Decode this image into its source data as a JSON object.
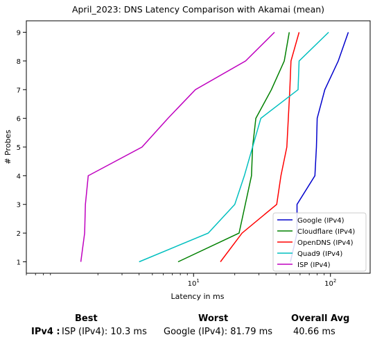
{
  "chart_data": {
    "type": "line",
    "title": "April_2023: DNS Latency Comparison with Akamai (mean)",
    "xlabel": "Latency in ms",
    "ylabel": "# Probes",
    "x_scale": "log",
    "xlim": [
      0.6,
      195
    ],
    "ylim": [
      0.6,
      9.4
    ],
    "x_ticks": [
      10,
      100
    ],
    "x_tick_labels": [
      "10^1",
      "10^2"
    ],
    "y_ticks": [
      1,
      2,
      3,
      4,
      5,
      6,
      7,
      8,
      9
    ],
    "grid": false,
    "legend_position": "lower-right",
    "series": [
      {
        "name": "Google (IPv4)",
        "color": "#0000cc",
        "points": [
          [
            51,
            1
          ],
          [
            57,
            2
          ],
          [
            57,
            3
          ],
          [
            77,
            4
          ],
          [
            79,
            5
          ],
          [
            80,
            6
          ],
          [
            91,
            7
          ],
          [
            114,
            8
          ],
          [
            135,
            9
          ]
        ]
      },
      {
        "name": "Cloudflare (IPv4)",
        "color": "#008000",
        "points": [
          [
            7.7,
            1
          ],
          [
            21.5,
            2
          ],
          [
            26.5,
            4
          ],
          [
            27,
            5
          ],
          [
            28.5,
            6
          ],
          [
            37,
            7
          ],
          [
            46,
            8
          ],
          [
            50,
            9
          ]
        ]
      },
      {
        "name": "OpenDNS (IPv4)",
        "color": "#ff0000",
        "points": [
          [
            15.7,
            1
          ],
          [
            22.6,
            2
          ],
          [
            40.5,
            3
          ],
          [
            43.5,
            4
          ],
          [
            48,
            5
          ],
          [
            50.5,
            7
          ],
          [
            51.5,
            8
          ],
          [
            59,
            9
          ]
        ]
      },
      {
        "name": "Quad9 (IPv4)",
        "color": "#00bfbf",
        "points": [
          [
            4,
            1
          ],
          [
            12.8,
            2
          ],
          [
            20,
            3
          ],
          [
            23.5,
            4
          ],
          [
            31,
            6
          ],
          [
            58,
            7
          ],
          [
            59,
            8
          ],
          [
            97,
            9
          ]
        ]
      },
      {
        "name": "ISP (IPv4)",
        "color": "#bf00bf",
        "points": [
          [
            1.5,
            1
          ],
          [
            1.6,
            2
          ],
          [
            1.62,
            3
          ],
          [
            1.7,
            4
          ],
          [
            4.2,
            5
          ],
          [
            6.5,
            6
          ],
          [
            10.3,
            7
          ],
          [
            24,
            8
          ],
          [
            39,
            9
          ]
        ]
      }
    ]
  },
  "summary": {
    "headers": {
      "best": "Best",
      "worst": "Worst",
      "avg": "Overall Avg"
    },
    "row_label": "IPv4 :",
    "best": "ISP (IPv4): 10.3 ms",
    "worst": "Google (IPv4): 81.79 ms",
    "avg": "40.66 ms"
  }
}
